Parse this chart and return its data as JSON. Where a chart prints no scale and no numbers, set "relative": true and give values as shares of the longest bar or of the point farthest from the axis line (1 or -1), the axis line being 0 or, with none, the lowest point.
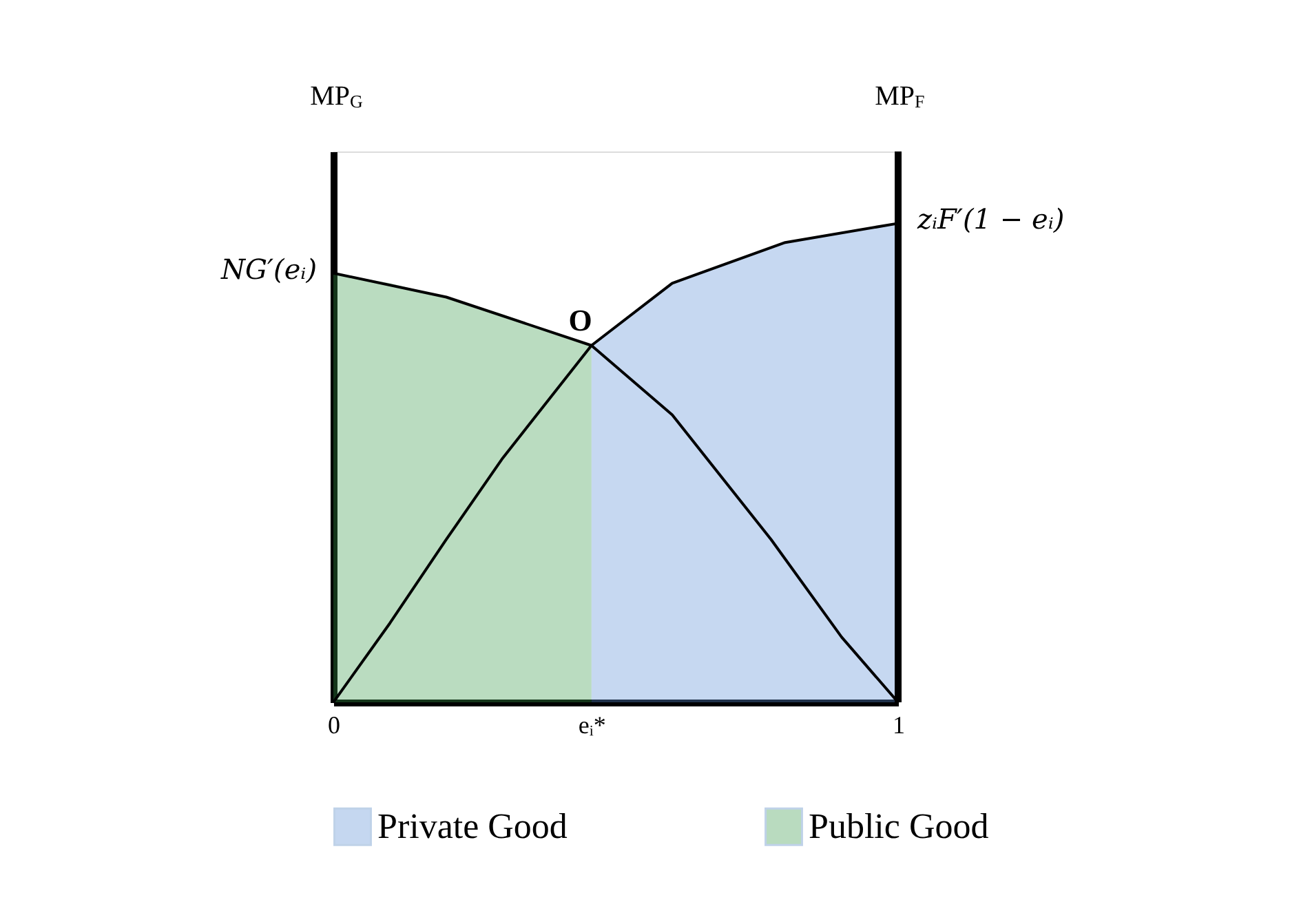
{
  "chart_data": {
    "type": "line",
    "relative": true,
    "ylabel": "MP$_{G}$",
    "y2label": "MP$_{F}$",
    "xlim": [
      0,
      1
    ],
    "xticks": [
      0,
      1,
      {
        "value": 0.457,
        "label": "eᵢ*"
      }
    ],
    "legend": "bottom",
    "grid": false,
    "series": [
      {
        "name": "Private Good",
        "type": "area",
        "color": "#5b8fd6",
        "x": [
          0.457,
          0.6,
          0.8,
          1
        ],
        "values": [
          0.745,
          0.875,
          0.96,
          1
        ]
      },
      {
        "name": "Public Good",
        "type": "area",
        "color": "#3a9a4a",
        "x": [
          0,
          0.1,
          0.2,
          0.3,
          0.457
        ],
        "values": [
          0.896,
          0.875,
          0.846,
          0.81,
          0.745
        ]
      },
      {
        "name": "NG′(eᵢ)",
        "type": "line",
        "color": "#000000",
        "x": [
          0,
          0.2,
          0.457,
          0.6,
          0.775,
          0.9,
          1
        ],
        "values": [
          0.896,
          0.846,
          0.745,
          0.6,
          0.34,
          0.136,
          0
        ]
      },
      {
        "name": "zᵢF′(1 − eᵢ)",
        "type": "line",
        "color": "#000000",
        "x": [
          0,
          0.1,
          0.2,
          0.3,
          0.457,
          0.6,
          0.8,
          1
        ],
        "values": [
          0,
          0.165,
          0.34,
          0.51,
          0.745,
          0.875,
          0.96,
          1
        ]
      }
    ],
    "annotations": [
      {
        "text": "O",
        "x": 0.457,
        "y": 0.745
      }
    ]
  }
}
